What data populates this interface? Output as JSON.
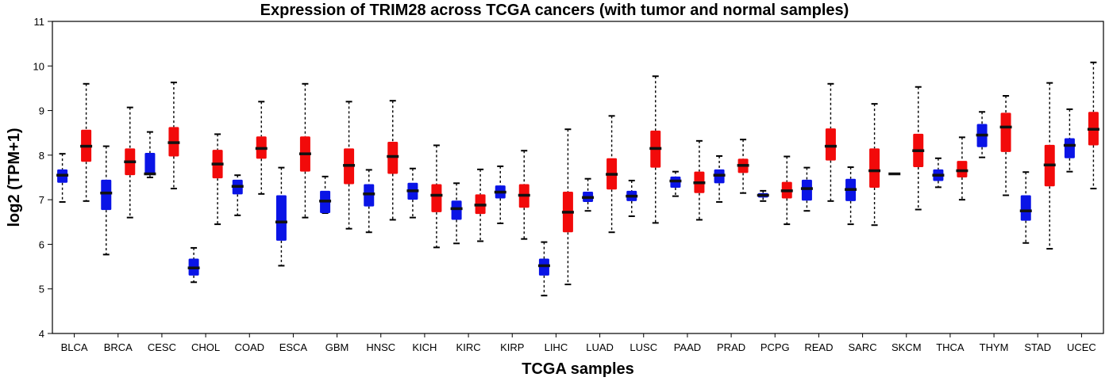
{
  "chart_data": {
    "type": "box",
    "title": "Expression of TRIM28 across TCGA cancers (with tumor and normal samples)",
    "xlabel": "TCGA samples",
    "ylabel": "log2 (TPM+1)",
    "ylim": [
      4,
      11
    ],
    "yticks": [
      4,
      5,
      6,
      7,
      8,
      9,
      10,
      11
    ],
    "grid": false,
    "series_colors": {
      "normal": "#0a14e6",
      "tumor": "#f20a0a"
    },
    "categories": [
      "BLCA",
      "BRCA",
      "CESC",
      "CHOL",
      "COAD",
      "ESCA",
      "GBM",
      "HNSC",
      "KICH",
      "KIRC",
      "KIRP",
      "LIHC",
      "LUAD",
      "LUSC",
      "PAAD",
      "PRAD",
      "PCPG",
      "READ",
      "SARC",
      "SKCM",
      "THCA",
      "THYM",
      "STAD",
      "UCEC"
    ],
    "normal": [
      {
        "min": 6.95,
        "q1": 7.38,
        "median": 7.55,
        "q3": 7.68,
        "max": 8.03
      },
      {
        "min": 5.77,
        "q1": 6.77,
        "median": 7.15,
        "q3": 7.45,
        "max": 8.2
      },
      {
        "min": 7.5,
        "q1": 7.55,
        "median": 7.58,
        "q3": 8.05,
        "max": 8.52
      },
      {
        "min": 5.15,
        "q1": 5.3,
        "median": 5.47,
        "q3": 5.68,
        "max": 5.92
      },
      {
        "min": 6.65,
        "q1": 7.12,
        "median": 7.3,
        "q3": 7.45,
        "max": 7.55
      },
      {
        "min": 5.52,
        "q1": 6.08,
        "median": 6.5,
        "q3": 7.1,
        "max": 7.72
      },
      {
        "min": 6.7,
        "q1": 6.7,
        "median": 6.97,
        "q3": 7.2,
        "max": 7.52
      },
      {
        "min": 6.27,
        "q1": 6.85,
        "median": 7.13,
        "q3": 7.35,
        "max": 7.67
      },
      {
        "min": 6.6,
        "q1": 7.0,
        "median": 7.2,
        "q3": 7.38,
        "max": 7.7
      },
      {
        "min": 6.02,
        "q1": 6.55,
        "median": 6.8,
        "q3": 6.98,
        "max": 7.37
      },
      {
        "min": 6.47,
        "q1": 7.03,
        "median": 7.17,
        "q3": 7.32,
        "max": 7.75
      },
      {
        "min": 4.85,
        "q1": 5.3,
        "median": 5.52,
        "q3": 5.68,
        "max": 6.05
      },
      {
        "min": 6.75,
        "q1": 6.95,
        "median": 7.05,
        "q3": 7.18,
        "max": 7.47
      },
      {
        "min": 6.63,
        "q1": 6.97,
        "median": 7.08,
        "q3": 7.2,
        "max": 7.43
      },
      {
        "min": 7.08,
        "q1": 7.27,
        "median": 7.42,
        "q3": 7.52,
        "max": 7.63
      },
      {
        "min": 6.95,
        "q1": 7.37,
        "median": 7.55,
        "q3": 7.68,
        "max": 7.98
      },
      {
        "min": 6.97,
        "q1": 7.05,
        "median": 7.1,
        "q3": 7.15,
        "max": 7.2
      },
      {
        "min": 6.75,
        "q1": 6.98,
        "median": 7.25,
        "q3": 7.45,
        "max": 7.72
      },
      {
        "min": 6.45,
        "q1": 6.97,
        "median": 7.23,
        "q3": 7.47,
        "max": 7.73
      },
      {
        "min": 7.58,
        "q1": 7.58,
        "median": 7.58,
        "q3": 7.58,
        "max": 7.58
      },
      {
        "min": 7.28,
        "q1": 7.42,
        "median": 7.55,
        "q3": 7.68,
        "max": 7.93
      },
      {
        "min": 7.95,
        "q1": 8.18,
        "median": 8.45,
        "q3": 8.7,
        "max": 8.97
      },
      {
        "min": 6.03,
        "q1": 6.53,
        "median": 6.75,
        "q3": 7.1,
        "max": 7.62
      },
      {
        "min": 7.63,
        "q1": 7.93,
        "median": 8.22,
        "q3": 8.38,
        "max": 9.03
      }
    ],
    "tumor": [
      {
        "min": 6.97,
        "q1": 7.85,
        "median": 8.2,
        "q3": 8.57,
        "max": 9.6
      },
      {
        "min": 6.6,
        "q1": 7.55,
        "median": 7.85,
        "q3": 8.15,
        "max": 9.07
      },
      {
        "min": 7.25,
        "q1": 7.97,
        "median": 8.28,
        "q3": 8.63,
        "max": 9.63
      },
      {
        "min": 6.45,
        "q1": 7.48,
        "median": 7.8,
        "q3": 8.12,
        "max": 8.47
      },
      {
        "min": 7.13,
        "q1": 7.92,
        "median": 8.15,
        "q3": 8.42,
        "max": 9.2
      },
      {
        "min": 6.6,
        "q1": 7.63,
        "median": 8.03,
        "q3": 8.42,
        "max": 9.6
      },
      {
        "min": 6.35,
        "q1": 7.35,
        "median": 7.77,
        "q3": 8.15,
        "max": 9.2
      },
      {
        "min": 6.55,
        "q1": 7.58,
        "median": 7.97,
        "q3": 8.3,
        "max": 9.22
      },
      {
        "min": 5.93,
        "q1": 6.72,
        "median": 7.1,
        "q3": 7.35,
        "max": 8.22
      },
      {
        "min": 6.07,
        "q1": 6.68,
        "median": 6.88,
        "q3": 7.12,
        "max": 7.68
      },
      {
        "min": 6.12,
        "q1": 6.82,
        "median": 7.1,
        "q3": 7.35,
        "max": 8.1
      },
      {
        "min": 5.1,
        "q1": 6.27,
        "median": 6.72,
        "q3": 7.18,
        "max": 8.58
      },
      {
        "min": 6.27,
        "q1": 7.23,
        "median": 7.57,
        "q3": 7.93,
        "max": 8.88
      },
      {
        "min": 6.48,
        "q1": 7.72,
        "median": 8.15,
        "q3": 8.55,
        "max": 9.77
      },
      {
        "min": 6.55,
        "q1": 7.15,
        "median": 7.38,
        "q3": 7.63,
        "max": 8.32
      },
      {
        "min": 7.15,
        "q1": 7.6,
        "median": 7.77,
        "q3": 7.92,
        "max": 8.35
      },
      {
        "min": 6.45,
        "q1": 7.03,
        "median": 7.2,
        "q3": 7.4,
        "max": 7.97
      },
      {
        "min": 6.97,
        "q1": 7.88,
        "median": 8.2,
        "q3": 8.6,
        "max": 9.6
      },
      {
        "min": 6.43,
        "q1": 7.27,
        "median": 7.65,
        "q3": 8.15,
        "max": 9.15
      },
      {
        "min": 6.78,
        "q1": 7.73,
        "median": 8.1,
        "q3": 8.48,
        "max": 9.53
      },
      {
        "min": 7.0,
        "q1": 7.5,
        "median": 7.65,
        "q3": 7.87,
        "max": 8.4
      },
      {
        "min": 7.1,
        "q1": 8.07,
        "median": 8.63,
        "q3": 8.95,
        "max": 9.33
      },
      {
        "min": 5.9,
        "q1": 7.3,
        "median": 7.78,
        "q3": 8.23,
        "max": 9.62
      },
      {
        "min": 7.25,
        "q1": 8.22,
        "median": 8.58,
        "q3": 8.97,
        "max": 10.08
      }
    ]
  }
}
